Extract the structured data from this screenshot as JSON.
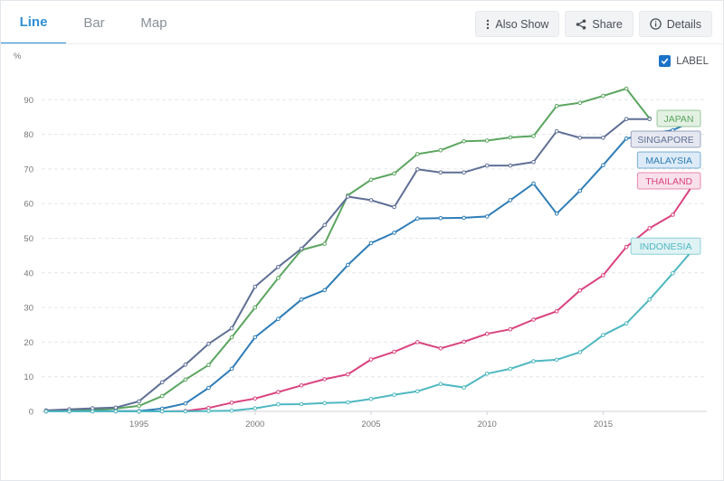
{
  "tabs": [
    {
      "label": "Line",
      "active": true
    },
    {
      "label": "Bar",
      "active": false
    },
    {
      "label": "Map",
      "active": false
    }
  ],
  "toolbar": {
    "also_show": "Also Show",
    "share": "Share",
    "details": "Details"
  },
  "label_toggle": {
    "text": "LABEL",
    "checked": true
  },
  "chart_data": {
    "type": "line",
    "unit_label": "%",
    "ylim": [
      0,
      95
    ],
    "yticks": [
      0,
      10,
      20,
      30,
      40,
      50,
      60,
      70,
      80,
      90
    ],
    "xlim": [
      1990.5,
      2019.5
    ],
    "xticks": [
      1995,
      2000,
      2005,
      2010,
      2015
    ],
    "grid": "horizontal dashed",
    "series": [
      {
        "name": "JAPAN",
        "color": "#5ba55f",
        "tag_fill": "#e3f1e3",
        "x": [
          1991,
          1992,
          1993,
          1994,
          1995,
          1996,
          1997,
          1998,
          1999,
          2000,
          2001,
          2002,
          2003,
          2004,
          2005,
          2006,
          2007,
          2008,
          2009,
          2010,
          2011,
          2012,
          2013,
          2014,
          2015,
          2016,
          2017
        ],
        "values": [
          0,
          0.2,
          0.4,
          0.8,
          1.6,
          4.4,
          9.2,
          13.4,
          21.4,
          30,
          38.5,
          46.6,
          48.4,
          62.4,
          66.9,
          68.7,
          74.3,
          75.4,
          78,
          78.2,
          79.1,
          79.5,
          88.2,
          89.1,
          91.1,
          93.2,
          84.6
        ]
      },
      {
        "name": "MALAYSIA",
        "color": "#2e7db7",
        "tag_fill": "#dcebf7",
        "x": [
          1991,
          1992,
          1993,
          1994,
          1995,
          1996,
          1997,
          1998,
          1999,
          2000,
          2001,
          2002,
          2003,
          2004,
          2005,
          2006,
          2007,
          2008,
          2009,
          2010,
          2011,
          2012,
          2013,
          2014,
          2015,
          2016,
          2017,
          2018,
          2019
        ],
        "values": [
          0,
          0,
          0.1,
          0.1,
          0.1,
          0.8,
          2.3,
          6.8,
          12.3,
          21.4,
          26.7,
          32.3,
          35,
          42.3,
          48.6,
          51.6,
          55.7,
          55.8,
          55.9,
          56.3,
          61,
          65.8,
          57.1,
          63.7,
          71.1,
          78.8,
          80.1,
          81.2,
          84.2
        ]
      },
      {
        "name": "SINGAPORE",
        "color": "#5f6f95",
        "tag_fill": "#e6e8f1",
        "x": [
          1991,
          1992,
          1993,
          1994,
          1995,
          1996,
          1997,
          1998,
          1999,
          2000,
          2001,
          2002,
          2003,
          2004,
          2005,
          2006,
          2007,
          2008,
          2009,
          2010,
          2011,
          2012,
          2013,
          2014,
          2015,
          2016,
          2017
        ],
        "values": [
          0.3,
          0.6,
          0.9,
          1.1,
          2.9,
          8.4,
          13.5,
          19.5,
          24,
          36,
          41.7,
          47,
          53.8,
          62,
          61,
          59,
          69.9,
          69,
          69,
          71,
          71,
          72,
          80.9,
          79,
          79,
          84.4,
          84.4
        ]
      },
      {
        "name": "THAILAND",
        "color": "#d9437f",
        "tag_fill": "#f9e1eb",
        "x": [
          1991,
          1992,
          1993,
          1994,
          1995,
          1996,
          1997,
          1998,
          1999,
          2000,
          2001,
          2002,
          2003,
          2004,
          2005,
          2006,
          2007,
          2008,
          2009,
          2010,
          2011,
          2012,
          2013,
          2014,
          2015,
          2016,
          2017,
          2018,
          2019
        ],
        "values": [
          0,
          0,
          0,
          0,
          0,
          0,
          0.1,
          1,
          2.5,
          3.7,
          5.6,
          7.5,
          9.3,
          10.7,
          15,
          17.2,
          20,
          18.2,
          20.1,
          22.4,
          23.7,
          26.5,
          28.9,
          34.9,
          39.3,
          47.5,
          52.9,
          56.8,
          66.7
        ]
      },
      {
        "name": "INDONESIA",
        "color": "#4fb8c1",
        "tag_fill": "#dff2f4",
        "x": [
          1991,
          1992,
          1993,
          1994,
          1995,
          1996,
          1997,
          1998,
          1999,
          2000,
          2001,
          2002,
          2003,
          2004,
          2005,
          2006,
          2007,
          2008,
          2009,
          2010,
          2011,
          2012,
          2013,
          2014,
          2015,
          2016,
          2017,
          2018,
          2019
        ],
        "values": [
          0,
          0,
          0,
          0,
          0,
          0,
          0,
          0.1,
          0.2,
          0.9,
          2,
          2.1,
          2.4,
          2.6,
          3.6,
          4.8,
          5.8,
          7.9,
          6.9,
          10.9,
          12.3,
          14.5,
          14.9,
          17.1,
          22,
          25.4,
          32.3,
          39.9,
          47.7
        ]
      }
    ]
  }
}
